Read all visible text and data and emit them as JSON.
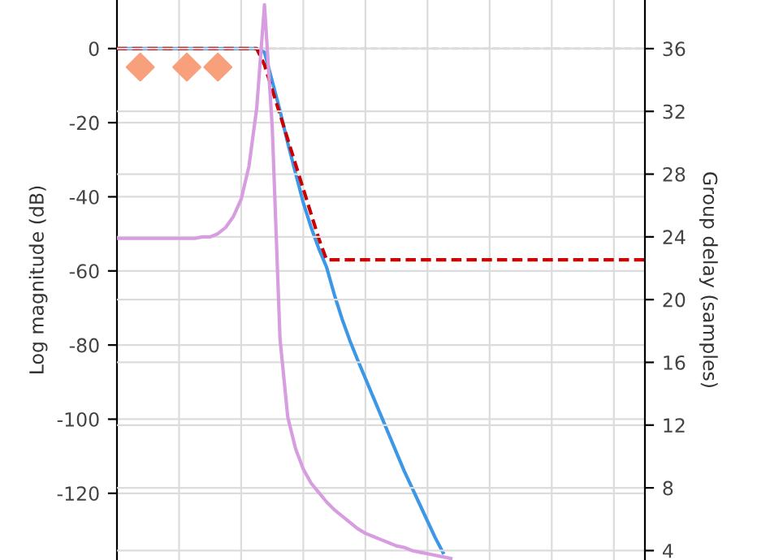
{
  "chart_data": {
    "type": "line",
    "ylabel": "Log magnitude (dB)",
    "y2label": "Group delay (samples)",
    "categories": [
      null,
      null,
      null,
      null,
      null,
      null,
      null,
      null,
      null,
      null,
      null,
      null,
      null,
      null,
      null,
      null,
      null,
      null,
      null,
      null,
      null,
      null,
      null,
      null,
      null,
      null,
      null,
      null,
      null,
      null,
      null,
      null,
      null,
      null,
      null,
      null,
      null,
      null,
      null,
      null,
      null,
      null,
      null,
      null,
      null,
      null,
      null,
      null,
      null,
      null,
      null,
      null,
      null,
      null,
      null,
      null,
      null,
      null,
      null,
      null,
      null,
      null,
      null,
      null,
      null,
      null,
      null,
      null,
      null
    ],
    "ylim": [
      -138.0,
      13.1
    ],
    "yticks": [
      0,
      -20,
      -40,
      -60,
      -80,
      -100,
      -120
    ],
    "y2lim": [
      3.4,
      39.1
    ],
    "y2ticks": [
      4,
      8,
      12,
      16,
      20,
      24,
      28,
      32,
      36
    ],
    "grid": true,
    "ref_lines": [
      {
        "axis": "y",
        "value": 0,
        "color": "#cccccc",
        "line_style": "dashed"
      }
    ],
    "series": [
      {
        "axis": "y2",
        "color": "#d79de0",
        "values": [
          23.9,
          23.9,
          23.9,
          23.9,
          23.9,
          23.9,
          23.9,
          23.9,
          23.9,
          23.9,
          23.9,
          24.0,
          24.0,
          24.2,
          24.6,
          25.3,
          26.4,
          28.5,
          32.2,
          38.8,
          31,
          17.5,
          12.5,
          10.5,
          9.2,
          8.3,
          7.7,
          7.1,
          6.6,
          6.2,
          5.8,
          5.4,
          5.1,
          4.9,
          4.7,
          4.5,
          4.3,
          4.2,
          4.0,
          3.9,
          3.8,
          3.7,
          3.6,
          3.5,
          null,
          null,
          null,
          null,
          null,
          null,
          null,
          null,
          null,
          null,
          null,
          null,
          null,
          null,
          null,
          null,
          null,
          null,
          null,
          null,
          null,
          null,
          null,
          null,
          null
        ]
      },
      {
        "axis": "y",
        "color": "#3c97e6",
        "values": [
          0,
          0,
          0,
          0,
          0,
          0,
          0,
          0,
          0,
          0,
          0,
          0,
          0,
          0,
          0,
          0,
          0,
          0,
          0,
          -1,
          -8.8,
          -16.8,
          -25.5,
          -33.6,
          -41.6,
          -48.2,
          -54,
          -59,
          -66.4,
          -73,
          -78.8,
          -84,
          -89,
          -94,
          -99,
          -104,
          -109,
          -114,
          -118.5,
          -123,
          -127.5,
          -132,
          -136,
          null,
          null,
          null,
          null,
          null,
          null,
          null,
          null,
          null,
          null,
          null,
          null,
          null,
          null,
          null,
          null,
          null,
          null,
          null,
          null,
          null,
          null,
          null,
          null,
          null,
          null
        ]
      },
      {
        "axis": "y",
        "color": "#cc0000",
        "line_style": "dashed",
        "values": [
          0,
          0,
          0,
          0,
          0,
          0,
          0,
          0,
          0,
          0,
          0,
          0,
          0,
          0,
          0,
          0,
          0,
          0,
          0,
          -4.4,
          -11.1,
          -17.8,
          -24.5,
          -31.2,
          -37.9,
          -44.6,
          -51.3,
          -57,
          -57,
          -57,
          -57,
          -57,
          -57,
          -57,
          -57,
          -57,
          -57,
          -57,
          -57,
          -57,
          -57,
          -57,
          -57,
          -57,
          -57,
          -57,
          -57,
          -57,
          -57,
          -57,
          -57,
          -57,
          -57,
          -57,
          -57,
          -57,
          -57,
          -57,
          -57,
          -57,
          -57,
          -57,
          -57,
          -57,
          -57,
          -57,
          -57,
          -57,
          -57
        ]
      },
      {
        "type": "scatter",
        "axis": "y",
        "color": "#f89f7c",
        "marker": "diamond",
        "values": [
          null,
          null,
          null,
          -5,
          null,
          null,
          null,
          null,
          null,
          -5,
          null,
          null,
          null,
          -5,
          null,
          null,
          null,
          null,
          null,
          null,
          null,
          null,
          null,
          null,
          null,
          null,
          null,
          null,
          null,
          null,
          null,
          null,
          null,
          null,
          null,
          null,
          null,
          null,
          null,
          null,
          null,
          null,
          null,
          null,
          null,
          null,
          null,
          null,
          null,
          null,
          null,
          null,
          null,
          null,
          null,
          null,
          null,
          null,
          null,
          null,
          null,
          null,
          null,
          null,
          null,
          null,
          null,
          null,
          null
        ]
      }
    ]
  }
}
